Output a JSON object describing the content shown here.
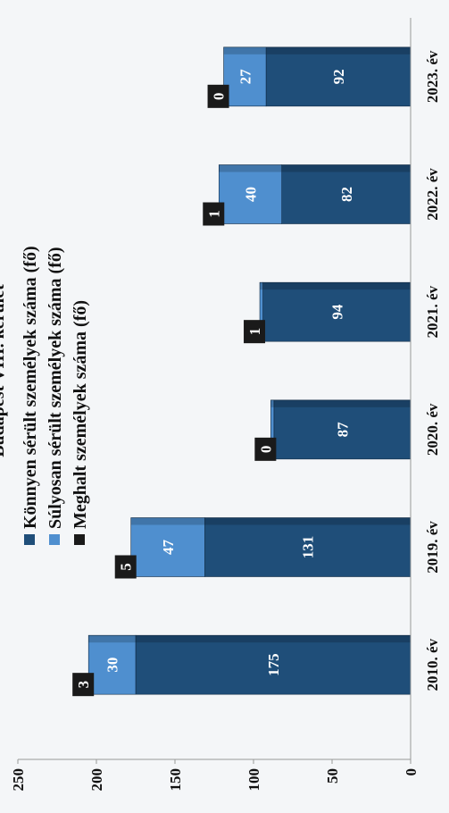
{
  "chart_data": {
    "type": "bar",
    "stacked": true,
    "orientation": "rotated-90-clockwise",
    "title": "Budapest VIII. kerület",
    "categories": [
      "2010. év",
      "2019. év",
      "2020. év",
      "2021. év",
      "2022. év",
      "2023. év"
    ],
    "series": [
      {
        "name": "Könnyen sérült személyek száma (fő)",
        "color": "#1f4e79",
        "values": [
          175,
          131,
          87,
          94,
          82,
          92
        ]
      },
      {
        "name": "Súlyosan sérült személyek száma (fő)",
        "color": "#4f8fcf",
        "values": [
          30,
          47,
          2,
          2,
          40,
          27
        ]
      },
      {
        "name": "Meghalt személyek száma (fő)",
        "color": "#1a1a1a",
        "values": [
          3,
          5,
          0,
          1,
          1,
          0
        ]
      }
    ],
    "value_labels": {
      "series_0": [
        "175",
        "131",
        "87",
        "94",
        "82",
        "92"
      ],
      "series_1": [
        "30",
        "47",
        "",
        "",
        "40",
        "27"
      ],
      "series_2": [
        "3",
        "5",
        "0",
        "1",
        "1",
        "0"
      ]
    },
    "yticks": [
      "0",
      "50",
      "100",
      "150",
      "200",
      "250"
    ],
    "ylim": [
      0,
      250
    ],
    "grid": false,
    "legend": "top-center"
  },
  "colors": {
    "background": "#f4f6f8",
    "axis": "#999999",
    "label_box": "#1a1a1a",
    "bar_light": "#4f8fcf",
    "bar_dark": "#1f4e79"
  }
}
